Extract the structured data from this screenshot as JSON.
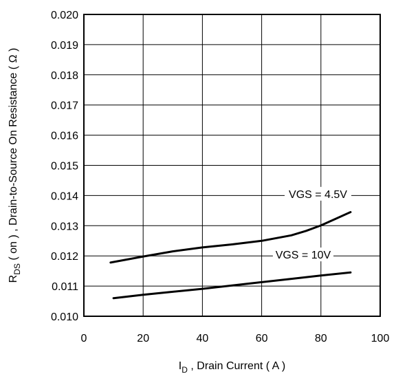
{
  "chart_data": {
    "type": "line",
    "xlabel": "I",
    "xlabel_sub": "D",
    "xlabel_rest": ", Drain Current ( A )",
    "ylabel": "R",
    "ylabel_sub": "DS",
    "ylabel_rest": "( on ) , Drain-to-Source On Resistance ( Ω )",
    "xlim": [
      0,
      100
    ],
    "ylim": [
      0.01,
      0.02
    ],
    "xticks": [
      0,
      20,
      40,
      60,
      80,
      100
    ],
    "xtick_labels": [
      "0",
      "20",
      "40",
      "60",
      "80",
      "100"
    ],
    "yticks": [
      0.01,
      0.011,
      0.012,
      0.013,
      0.014,
      0.015,
      0.016,
      0.017,
      0.018,
      0.019,
      0.02
    ],
    "ytick_labels": [
      "0.010",
      "0.011",
      "0.012",
      "0.013",
      "0.014",
      "0.015",
      "0.016",
      "0.017",
      "0.018",
      "0.019",
      "0.020"
    ],
    "grid": true,
    "series": [
      {
        "name": "VGS = 4.5V",
        "x": [
          9,
          20,
          30,
          40,
          50,
          60,
          70,
          75,
          80,
          85,
          90
        ],
        "y": [
          0.01178,
          0.01198,
          0.01215,
          0.01228,
          0.01238,
          0.0125,
          0.01268,
          0.01283,
          0.01301,
          0.01323,
          0.01345
        ]
      },
      {
        "name": "VGS = 10V",
        "x": [
          10,
          20,
          30,
          40,
          50,
          60,
          70,
          80,
          90
        ],
        "y": [
          0.0106,
          0.01071,
          0.01081,
          0.01091,
          0.01102,
          0.01113,
          0.01124,
          0.01135,
          0.01145
        ]
      }
    ],
    "annotations": [
      {
        "text": "VGS = 4.5V",
        "x": 79,
        "y": 0.01399
      },
      {
        "text": "VGS = 10V",
        "x": 74,
        "y": 0.01198
      }
    ],
    "colors": {
      "line": "#000000",
      "grid": "#000000",
      "background": "#ffffff"
    }
  }
}
